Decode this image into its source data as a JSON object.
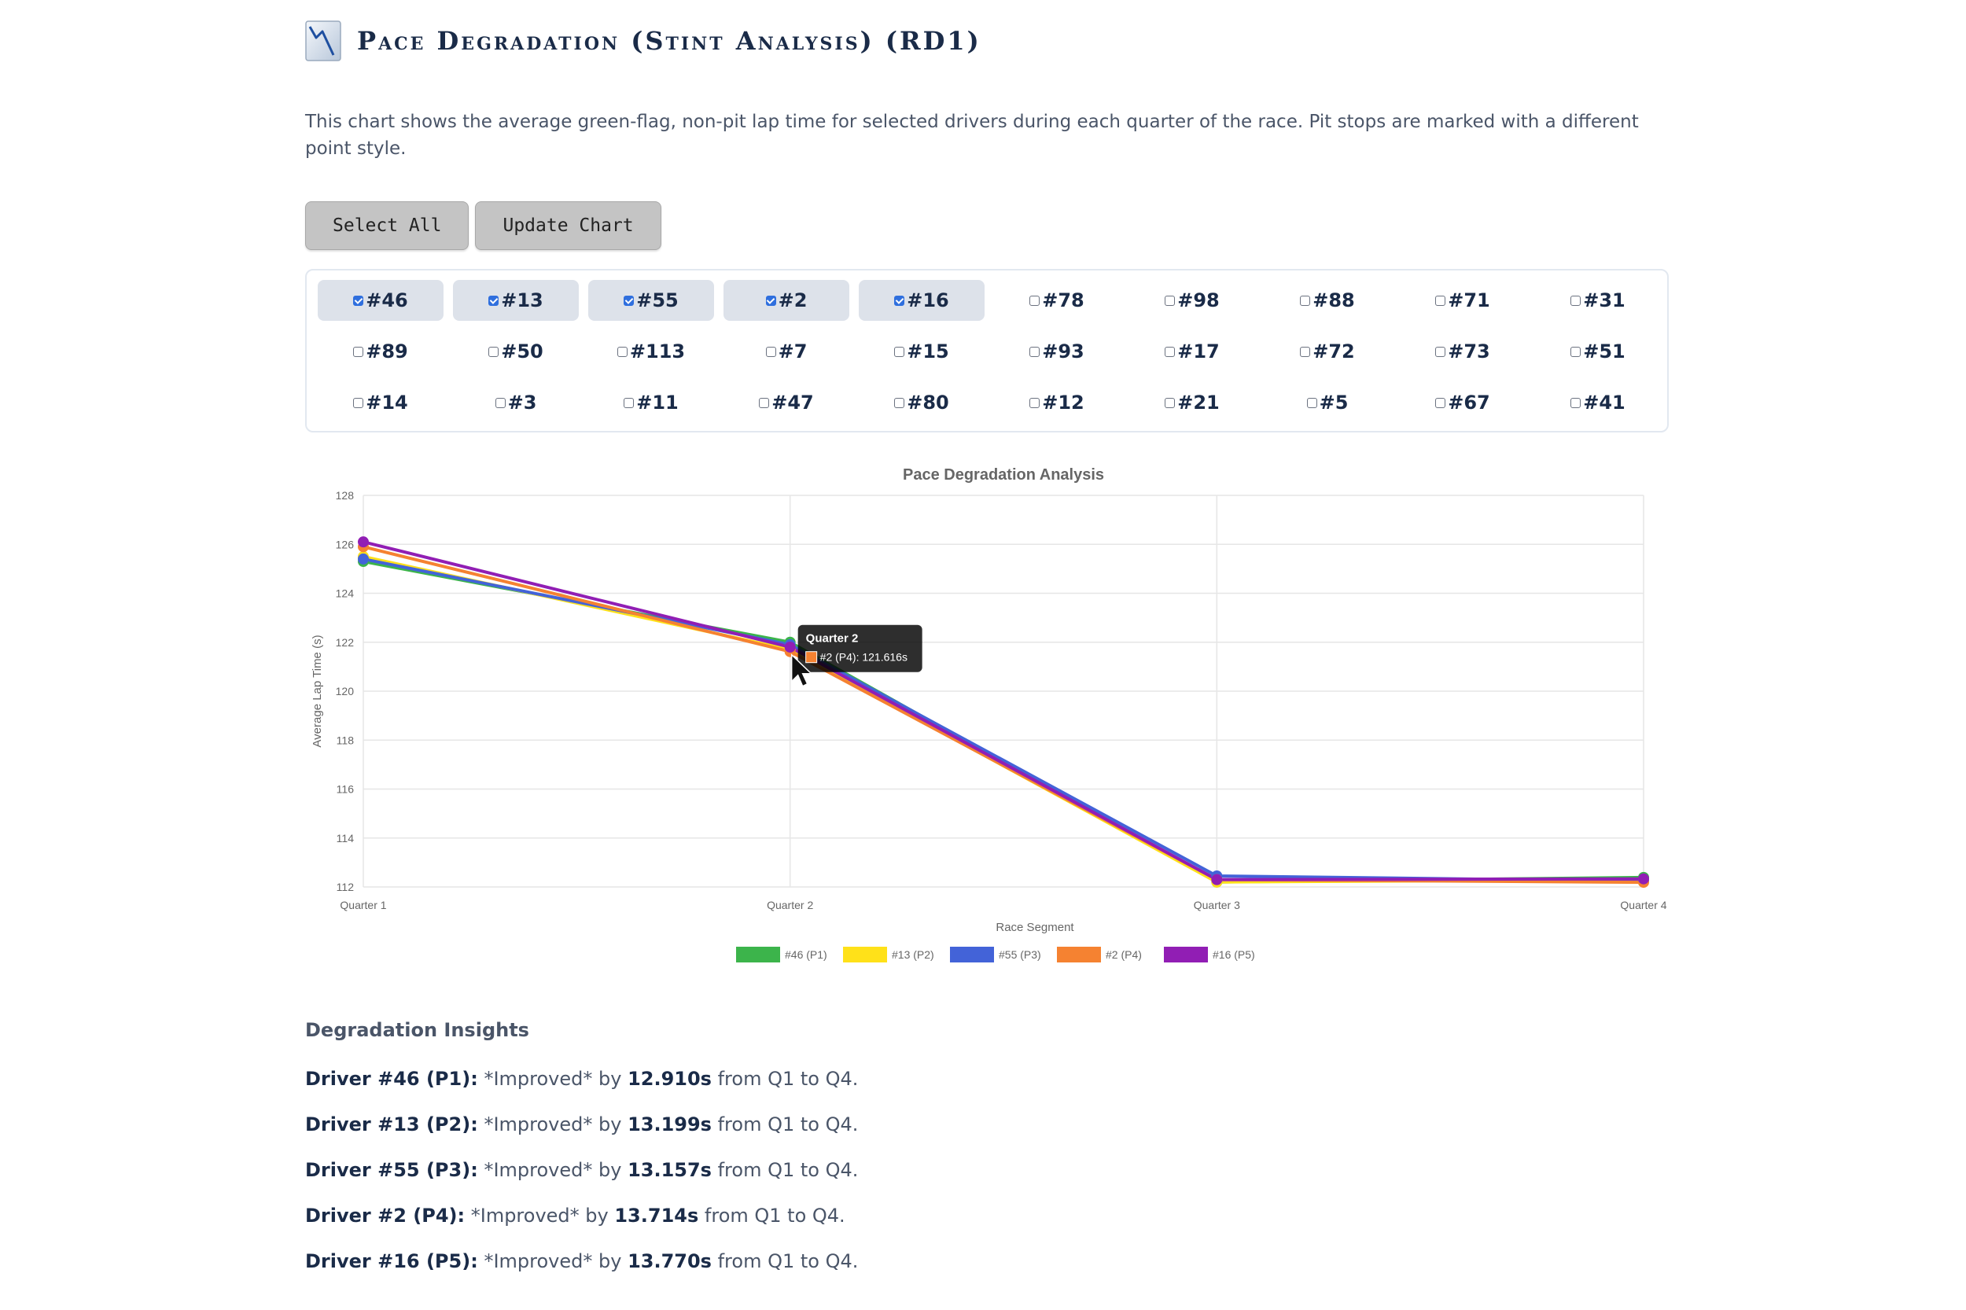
{
  "header": {
    "title": "Pace Degradation (Stint Analysis) (RD1)",
    "icon": "chart-decline-icon"
  },
  "description": "This chart shows the average green-flag, non-pit lap time for selected drivers during each quarter of the race. Pit stops are marked with a different point style.",
  "buttons": {
    "select_all": "Select All",
    "update_chart": "Update Chart"
  },
  "drivers": [
    {
      "label": "#46",
      "checked": true
    },
    {
      "label": "#13",
      "checked": true
    },
    {
      "label": "#55",
      "checked": true
    },
    {
      "label": "#2",
      "checked": true
    },
    {
      "label": "#16",
      "checked": true
    },
    {
      "label": "#78",
      "checked": false
    },
    {
      "label": "#98",
      "checked": false
    },
    {
      "label": "#88",
      "checked": false
    },
    {
      "label": "#71",
      "checked": false
    },
    {
      "label": "#31",
      "checked": false
    },
    {
      "label": "#89",
      "checked": false
    },
    {
      "label": "#50",
      "checked": false
    },
    {
      "label": "#113",
      "checked": false
    },
    {
      "label": "#7",
      "checked": false
    },
    {
      "label": "#15",
      "checked": false
    },
    {
      "label": "#93",
      "checked": false
    },
    {
      "label": "#17",
      "checked": false
    },
    {
      "label": "#72",
      "checked": false
    },
    {
      "label": "#73",
      "checked": false
    },
    {
      "label": "#51",
      "checked": false
    },
    {
      "label": "#14",
      "checked": false
    },
    {
      "label": "#3",
      "checked": false
    },
    {
      "label": "#11",
      "checked": false
    },
    {
      "label": "#47",
      "checked": false
    },
    {
      "label": "#80",
      "checked": false
    },
    {
      "label": "#12",
      "checked": false
    },
    {
      "label": "#21",
      "checked": false
    },
    {
      "label": "#5",
      "checked": false
    },
    {
      "label": "#67",
      "checked": false
    },
    {
      "label": "#41",
      "checked": false
    }
  ],
  "chart_data": {
    "type": "line",
    "title": "Pace Degradation Analysis",
    "xlabel": "Race Segment",
    "ylabel": "Average Lap Time (s)",
    "categories": [
      "Quarter 1",
      "Quarter 2",
      "Quarter 3",
      "Quarter 4"
    ],
    "ylim": [
      112,
      128
    ],
    "yticks": [
      112,
      114,
      116,
      118,
      120,
      122,
      124,
      126,
      128
    ],
    "grid": true,
    "legend_position": "bottom",
    "series": [
      {
        "name": "#46 (P1)",
        "color": "#3cb44b",
        "values": [
          125.3,
          122.0,
          112.2,
          112.39
        ]
      },
      {
        "name": "#13 (P2)",
        "color": "#ffe119",
        "values": [
          125.5,
          121.7,
          112.2,
          112.3
        ]
      },
      {
        "name": "#55 (P3)",
        "color": "#4363d8",
        "values": [
          125.4,
          121.9,
          112.45,
          112.24
        ]
      },
      {
        "name": "#2 (P4)",
        "color": "#f58231",
        "values": [
          125.9,
          121.616,
          112.3,
          112.19
        ]
      },
      {
        "name": "#16 (P5)",
        "color": "#911eb4",
        "values": [
          126.1,
          121.8,
          112.3,
          112.33
        ]
      }
    ],
    "tooltip": {
      "title": "Quarter 2",
      "text": "#2 (P4): 121.616s",
      "color": "#f58231",
      "category_index": 1
    }
  },
  "insights": {
    "title": "Degradation Insights",
    "items": [
      {
        "driver": "Driver #46 (P1):",
        "pre": "*Improved* by",
        "value": "12.910s",
        "post": "from Q1 to Q4."
      },
      {
        "driver": "Driver #13 (P2):",
        "pre": "*Improved* by",
        "value": "13.199s",
        "post": "from Q1 to Q4."
      },
      {
        "driver": "Driver #55 (P3):",
        "pre": "*Improved* by",
        "value": "13.157s",
        "post": "from Q1 to Q4."
      },
      {
        "driver": "Driver #2 (P4):",
        "pre": "*Improved* by",
        "value": "13.714s",
        "post": "from Q1 to Q4."
      },
      {
        "driver": "Driver #16 (P5):",
        "pre": "*Improved* by",
        "value": "13.770s",
        "post": "from Q1 to Q4."
      }
    ]
  }
}
